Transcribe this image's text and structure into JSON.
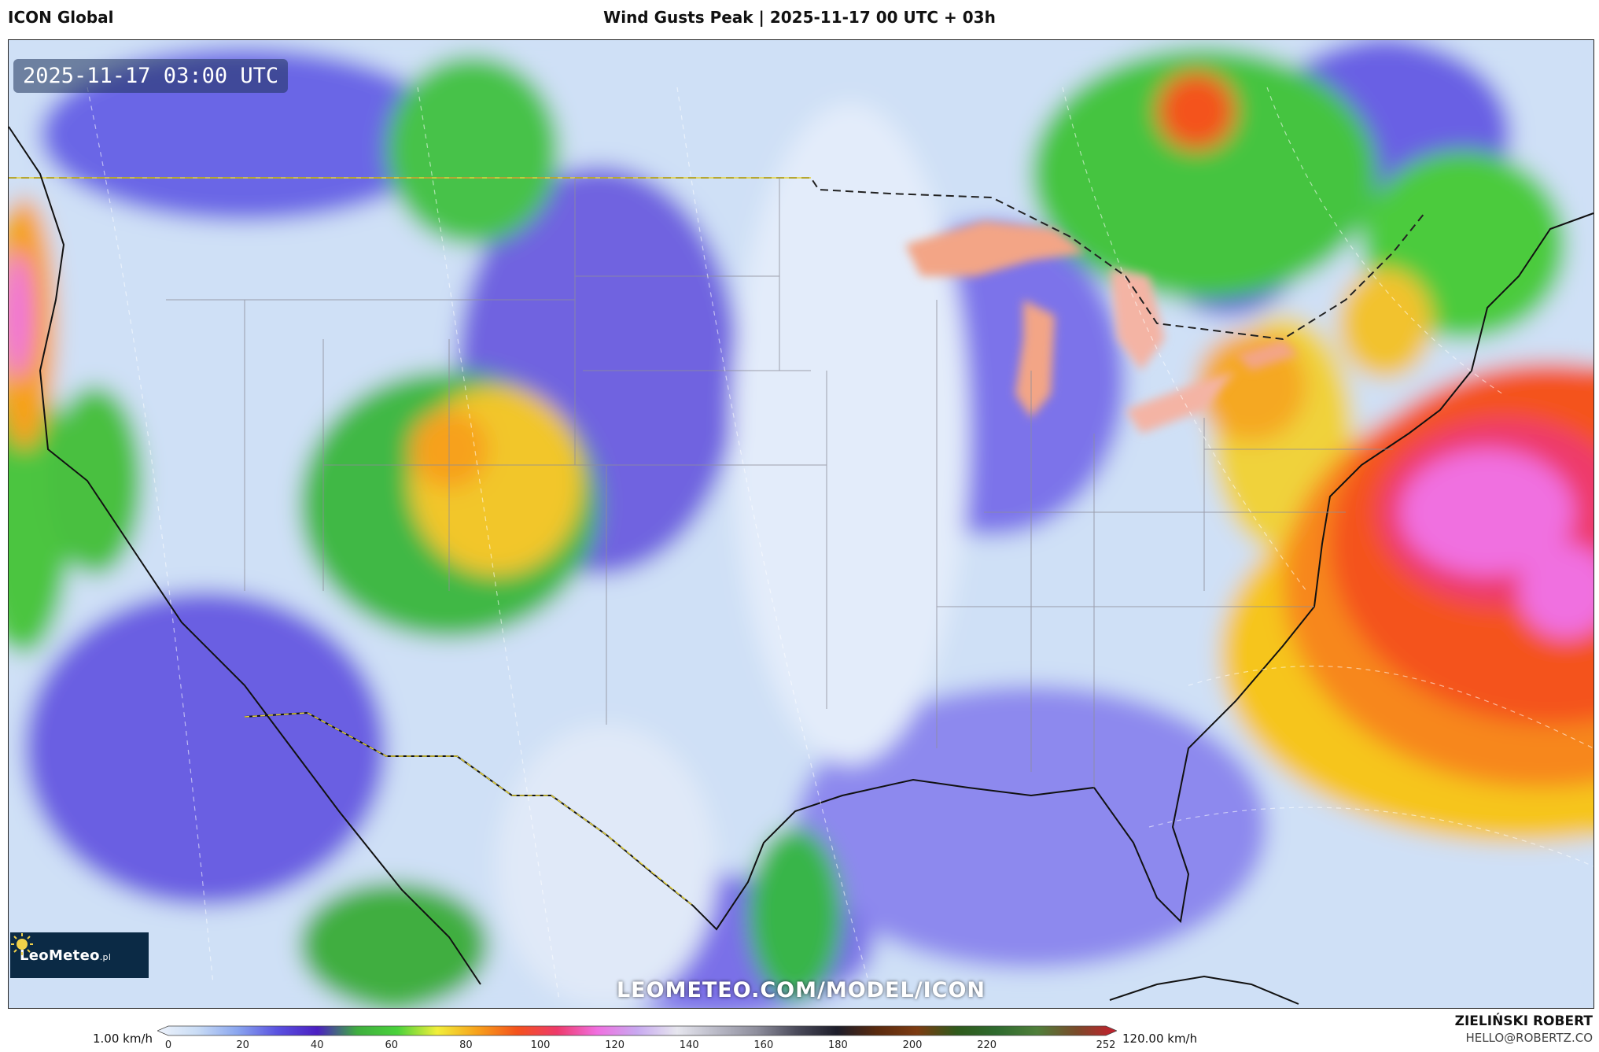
{
  "header": {
    "model": "ICON Global",
    "title": "Wind Gusts Peak | 2025-11-17 00 UTC + 03h"
  },
  "map": {
    "valid_time": "2025-11-17 03:00 UTC",
    "watermark": "LEOMETEO.COM/MODEL/ICON",
    "logo": {
      "name": "LeoMeteo",
      "suffix": ".pl",
      "icon": "sun-icon"
    }
  },
  "colorbar": {
    "min_label": "1.00 km/h",
    "max_label": "120.00 km/h",
    "ticks": [
      "0",
      "20",
      "40",
      "60",
      "80",
      "100",
      "120",
      "140",
      "160",
      "180",
      "200",
      "220",
      "252"
    ],
    "colors": [
      "#eef3fb",
      "#c9dcf5",
      "#8aa6ef",
      "#5a52e0",
      "#4b1fc2",
      "#3fae3f",
      "#49d23b",
      "#f1ef3a",
      "#f7a11b",
      "#f4521c",
      "#ee3a6b",
      "#f06fe0",
      "#c8a9f0",
      "#e6e6ee",
      "#b9b9c6",
      "#8e8e9c",
      "#4a4a5a",
      "#1d1d2a",
      "#5a2a0e",
      "#7d3b12",
      "#2f5a1c",
      "#2f6b2f",
      "#4f7f3a",
      "#7a4a2a",
      "#c81e2e"
    ]
  },
  "credits": {
    "author": "ZIELIŃSKI ROBERT",
    "email": "HELLO@ROBERTZ.CO"
  }
}
